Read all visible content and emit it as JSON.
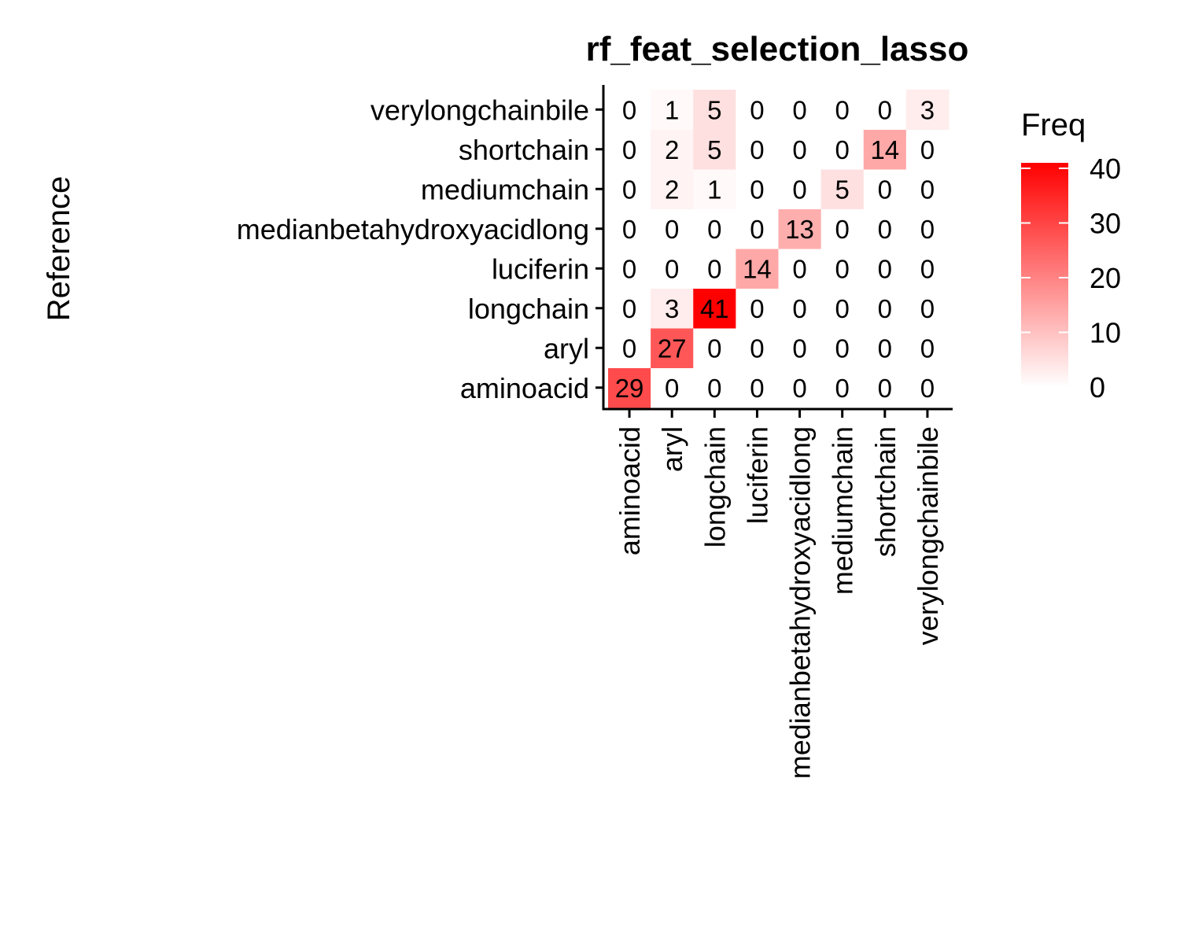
{
  "chart_data": {
    "type": "heatmap",
    "title": "rf_feat_selection_lasso",
    "ylabel": "Reference",
    "xlabel": "",
    "x_categories": [
      "aminoacid",
      "aryl",
      "longchain",
      "luciferin",
      "medianbetahydroxyacidlong",
      "mediumchain",
      "shortchain",
      "verylongchainbile"
    ],
    "y_categories": [
      "aminoacid",
      "aryl",
      "longchain",
      "luciferin",
      "medianbetahydroxyacidlong",
      "mediumchain",
      "shortchain",
      "verylongchainbile"
    ],
    "values": [
      [
        29,
        0,
        0,
        0,
        0,
        0,
        0,
        0
      ],
      [
        0,
        27,
        0,
        0,
        0,
        0,
        0,
        0
      ],
      [
        0,
        3,
        41,
        0,
        0,
        0,
        0,
        0
      ],
      [
        0,
        0,
        0,
        14,
        0,
        0,
        0,
        0
      ],
      [
        0,
        0,
        0,
        0,
        13,
        0,
        0,
        0
      ],
      [
        0,
        2,
        1,
        0,
        0,
        5,
        0,
        0
      ],
      [
        0,
        2,
        5,
        0,
        0,
        0,
        14,
        0
      ],
      [
        0,
        1,
        5,
        0,
        0,
        0,
        0,
        3
      ]
    ],
    "legend": {
      "title": "Freq",
      "ticks": [
        0,
        10,
        20,
        30,
        40
      ],
      "range": [
        0,
        41
      ],
      "low_color": "#ffffff",
      "high_color": "#ff0000",
      "placement": "right"
    }
  }
}
